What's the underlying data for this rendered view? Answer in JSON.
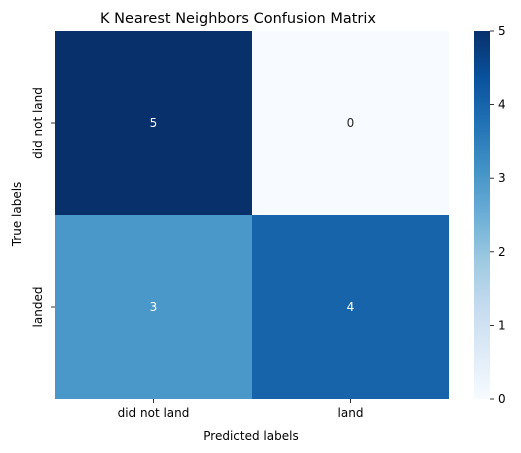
{
  "chart_data": {
    "type": "heatmap",
    "title": "K Nearest Neighbors Confusion Matrix",
    "xlabel": "Predicted labels",
    "ylabel": "True labels",
    "x_categories": [
      "did not land",
      "land"
    ],
    "y_categories": [
      "did not land",
      "landed"
    ],
    "values": [
      [
        5,
        0
      ],
      [
        3,
        4
      ]
    ],
    "colorbar": {
      "min": 0,
      "max": 5,
      "ticks": [
        "0",
        "1",
        "2",
        "3",
        "4",
        "5"
      ],
      "colormap": "Blues",
      "colors": [
        "#f7fbff",
        "#deebf7",
        "#c6dbef",
        "#9ecae1",
        "#6baed6",
        "#4292c6",
        "#2171b5",
        "#08519c",
        "#08306b"
      ]
    },
    "annotation_color_dark": "#ffffff",
    "annotation_color_light": "#262626",
    "grid": false
  }
}
